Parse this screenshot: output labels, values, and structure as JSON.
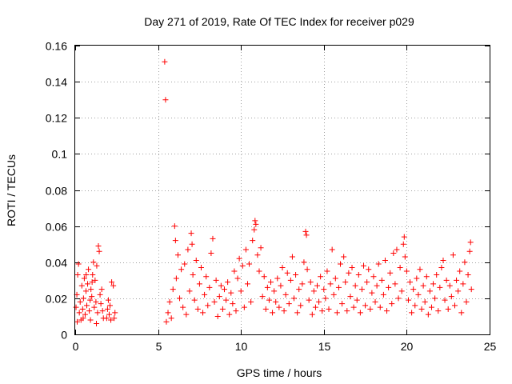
{
  "chart_data": {
    "type": "scatter",
    "title": "Day 271 of 2019, Rate Of TEC Index for receiver p029",
    "xlabel": "GPS time / hours",
    "ylabel": "ROTI / TECUs",
    "xlim": [
      0,
      25
    ],
    "ylim": [
      0,
      0.16
    ],
    "x_ticks": [
      0,
      5,
      10,
      15,
      20,
      25
    ],
    "x_tick_labels": [
      "0",
      "5",
      "10",
      "15",
      "20",
      "25"
    ],
    "y_ticks": [
      0,
      0.02,
      0.04,
      0.06,
      0.08,
      0.1,
      0.12,
      0.14,
      0.16
    ],
    "y_tick_labels": [
      "0",
      "0.02",
      "0.04",
      "0.06",
      "0.08",
      "0.1",
      "0.12",
      "0.14",
      "0.16"
    ],
    "grid": true,
    "marker": "+",
    "color": "#ff0000",
    "series": [
      {
        "name": "p029",
        "points": [
          [
            0.05,
            0.015
          ],
          [
            0.1,
            0.022
          ],
          [
            0.15,
            0.033
          ],
          [
            0.2,
            0.039
          ],
          [
            0.25,
            0.012
          ],
          [
            0.3,
            0.018
          ],
          [
            0.35,
            0.008
          ],
          [
            0.4,
            0.027
          ],
          [
            0.45,
            0.014
          ],
          [
            0.5,
            0.02
          ],
          [
            0.55,
            0.031
          ],
          [
            0.6,
            0.011
          ],
          [
            0.65,
            0.024
          ],
          [
            0.7,
            0.016
          ],
          [
            0.75,
            0.028
          ],
          [
            0.8,
            0.036
          ],
          [
            0.85,
            0.013
          ],
          [
            0.9,
            0.019
          ],
          [
            0.95,
            0.025
          ],
          [
            1.0,
            0.021
          ],
          [
            1.05,
            0.033
          ],
          [
            1.1,
            0.04
          ],
          [
            1.15,
            0.015
          ],
          [
            1.2,
            0.03
          ],
          [
            1.25,
            0.018
          ],
          [
            1.3,
            0.038
          ],
          [
            1.35,
            0.012
          ],
          [
            1.4,
            0.049
          ],
          [
            1.45,
            0.046
          ],
          [
            1.5,
            0.022
          ],
          [
            1.55,
            0.017
          ],
          [
            1.6,
            0.025
          ],
          [
            1.65,
            0.013
          ],
          [
            1.7,
            0.009
          ],
          [
            0.12,
            0.007
          ],
          [
            0.48,
            0.009
          ],
          [
            0.92,
            0.008
          ],
          [
            1.28,
            0.006
          ],
          [
            0.66,
            0.033
          ],
          [
            1.02,
            0.029
          ],
          [
            1.9,
            0.009
          ],
          [
            1.95,
            0.014
          ],
          [
            2.0,
            0.019
          ],
          [
            2.05,
            0.011
          ],
          [
            2.1,
            0.016
          ],
          [
            2.15,
            0.008
          ],
          [
            2.2,
            0.029
          ],
          [
            2.3,
            0.027
          ],
          [
            2.35,
            0.009
          ],
          [
            2.4,
            0.012
          ],
          [
            5.4,
            0.151
          ],
          [
            5.45,
            0.13
          ],
          [
            5.5,
            0.007
          ],
          [
            5.6,
            0.012
          ],
          [
            5.7,
            0.018
          ],
          [
            5.8,
            0.009
          ],
          [
            5.9,
            0.025
          ],
          [
            6.0,
            0.06
          ],
          [
            6.05,
            0.052
          ],
          [
            6.1,
            0.031
          ],
          [
            6.2,
            0.044
          ],
          [
            6.3,
            0.02
          ],
          [
            6.4,
            0.036
          ],
          [
            6.5,
            0.015
          ],
          [
            6.6,
            0.039
          ],
          [
            6.7,
            0.011
          ],
          [
            6.8,
            0.047
          ],
          [
            6.9,
            0.024
          ],
          [
            7.0,
            0.056
          ],
          [
            7.05,
            0.05
          ],
          [
            7.1,
            0.033
          ],
          [
            7.2,
            0.019
          ],
          [
            7.3,
            0.041
          ],
          [
            7.4,
            0.014
          ],
          [
            7.5,
            0.028
          ],
          [
            7.6,
            0.037
          ],
          [
            7.7,
            0.012
          ],
          [
            7.8,
            0.022
          ],
          [
            7.9,
            0.032
          ],
          [
            8.0,
            0.016
          ],
          [
            8.1,
            0.026
          ],
          [
            8.2,
            0.045
          ],
          [
            8.3,
            0.053
          ],
          [
            8.4,
            0.018
          ],
          [
            8.5,
            0.03
          ],
          [
            8.6,
            0.01
          ],
          [
            8.7,
            0.021
          ],
          [
            8.8,
            0.027
          ],
          [
            8.9,
            0.014
          ],
          [
            9.0,
            0.025
          ],
          [
            9.1,
            0.019
          ],
          [
            9.2,
            0.029
          ],
          [
            9.3,
            0.011
          ],
          [
            9.4,
            0.023
          ],
          [
            9.5,
            0.017
          ],
          [
            9.6,
            0.035
          ],
          [
            9.7,
            0.013
          ],
          [
            9.8,
            0.031
          ],
          [
            9.9,
            0.042
          ],
          [
            10.0,
            0.024
          ],
          [
            10.1,
            0.038
          ],
          [
            10.2,
            0.015
          ],
          [
            10.3,
            0.047
          ],
          [
            10.4,
            0.028
          ],
          [
            10.5,
            0.039
          ],
          [
            10.6,
            0.018
          ],
          [
            10.7,
            0.052
          ],
          [
            10.8,
            0.058
          ],
          [
            10.85,
            0.063
          ],
          [
            10.9,
            0.061
          ],
          [
            11.0,
            0.044
          ],
          [
            11.1,
            0.035
          ],
          [
            11.2,
            0.048
          ],
          [
            11.3,
            0.021
          ],
          [
            11.4,
            0.032
          ],
          [
            11.5,
            0.014
          ],
          [
            11.6,
            0.026
          ],
          [
            11.7,
            0.019
          ],
          [
            11.8,
            0.029
          ],
          [
            11.9,
            0.012
          ],
          [
            12.0,
            0.024
          ],
          [
            12.1,
            0.018
          ],
          [
            12.2,
            0.031
          ],
          [
            12.3,
            0.015
          ],
          [
            12.4,
            0.027
          ],
          [
            12.5,
            0.037
          ],
          [
            12.6,
            0.013
          ],
          [
            12.7,
            0.022
          ],
          [
            12.8,
            0.034
          ],
          [
            12.9,
            0.017
          ],
          [
            13.0,
            0.03
          ],
          [
            13.1,
            0.043
          ],
          [
            13.2,
            0.02
          ],
          [
            13.3,
            0.033
          ],
          [
            13.4,
            0.012
          ],
          [
            13.5,
            0.025
          ],
          [
            13.6,
            0.016
          ],
          [
            13.7,
            0.028
          ],
          [
            13.8,
            0.04
          ],
          [
            13.9,
            0.057
          ],
          [
            13.95,
            0.055
          ],
          [
            14.0,
            0.036
          ],
          [
            14.1,
            0.019
          ],
          [
            14.2,
            0.029
          ],
          [
            14.3,
            0.011
          ],
          [
            14.4,
            0.024
          ],
          [
            14.5,
            0.015
          ],
          [
            14.6,
            0.027
          ],
          [
            14.7,
            0.018
          ],
          [
            14.8,
            0.032
          ],
          [
            14.9,
            0.013
          ],
          [
            15.0,
            0.025
          ],
          [
            15.1,
            0.02
          ],
          [
            15.2,
            0.035
          ],
          [
            15.3,
            0.014
          ],
          [
            15.4,
            0.028
          ],
          [
            15.5,
            0.047
          ],
          [
            15.6,
            0.022
          ],
          [
            15.7,
            0.031
          ],
          [
            15.8,
            0.012
          ],
          [
            15.9,
            0.026
          ],
          [
            16.0,
            0.039
          ],
          [
            16.1,
            0.017
          ],
          [
            16.2,
            0.043
          ],
          [
            16.3,
            0.029
          ],
          [
            16.4,
            0.013
          ],
          [
            16.5,
            0.034
          ],
          [
            16.6,
            0.021
          ],
          [
            16.7,
            0.037
          ],
          [
            16.8,
            0.015
          ],
          [
            16.9,
            0.027
          ],
          [
            17.0,
            0.019
          ],
          [
            17.1,
            0.033
          ],
          [
            17.2,
            0.012
          ],
          [
            17.3,
            0.025
          ],
          [
            17.4,
            0.038
          ],
          [
            17.5,
            0.016
          ],
          [
            17.6,
            0.029
          ],
          [
            17.7,
            0.036
          ],
          [
            17.8,
            0.014
          ],
          [
            17.9,
            0.023
          ],
          [
            18.0,
            0.032
          ],
          [
            18.1,
            0.018
          ],
          [
            18.2,
            0.027
          ],
          [
            18.3,
            0.039
          ],
          [
            18.4,
            0.015
          ],
          [
            18.5,
            0.03
          ],
          [
            18.6,
            0.022
          ],
          [
            18.7,
            0.041
          ],
          [
            18.8,
            0.013
          ],
          [
            18.9,
            0.026
          ],
          [
            19.0,
            0.034
          ],
          [
            19.1,
            0.017
          ],
          [
            19.2,
            0.045
          ],
          [
            19.3,
            0.028
          ],
          [
            19.4,
            0.047
          ],
          [
            19.5,
            0.02
          ],
          [
            19.6,
            0.037
          ],
          [
            19.7,
            0.024
          ],
          [
            19.8,
            0.05
          ],
          [
            19.85,
            0.054
          ],
          [
            19.9,
            0.043
          ],
          [
            20.0,
            0.035
          ],
          [
            20.1,
            0.019
          ],
          [
            20.2,
            0.029
          ],
          [
            20.3,
            0.012
          ],
          [
            20.4,
            0.025
          ],
          [
            20.5,
            0.016
          ],
          [
            20.6,
            0.031
          ],
          [
            20.7,
            0.022
          ],
          [
            20.8,
            0.036
          ],
          [
            20.9,
            0.014
          ],
          [
            21.0,
            0.027
          ],
          [
            21.1,
            0.018
          ],
          [
            21.2,
            0.032
          ],
          [
            21.3,
            0.011
          ],
          [
            21.4,
            0.024
          ],
          [
            21.5,
            0.015
          ],
          [
            21.6,
            0.028
          ],
          [
            21.7,
            0.02
          ],
          [
            21.8,
            0.033
          ],
          [
            21.9,
            0.013
          ],
          [
            22.0,
            0.026
          ],
          [
            22.1,
            0.037
          ],
          [
            22.2,
            0.041
          ],
          [
            22.3,
            0.019
          ],
          [
            22.4,
            0.03
          ],
          [
            22.5,
            0.014
          ],
          [
            22.6,
            0.027
          ],
          [
            22.7,
            0.021
          ],
          [
            22.8,
            0.044
          ],
          [
            22.9,
            0.016
          ],
          [
            23.0,
            0.03
          ],
          [
            23.1,
            0.024
          ],
          [
            23.2,
            0.035
          ],
          [
            23.3,
            0.012
          ],
          [
            23.4,
            0.028
          ],
          [
            23.5,
            0.04
          ],
          [
            23.6,
            0.018
          ],
          [
            23.7,
            0.033
          ],
          [
            23.8,
            0.046
          ],
          [
            23.85,
            0.051
          ],
          [
            23.9,
            0.025
          ]
        ]
      }
    ]
  }
}
